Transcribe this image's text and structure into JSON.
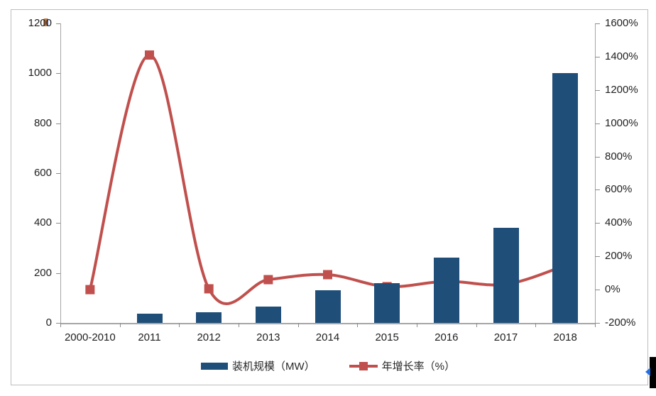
{
  "chart_data": {
    "type": "bar",
    "subtype": "combo-bar-line",
    "title": "",
    "categories": [
      "2000-2010",
      "2011",
      "2012",
      "2013",
      "2014",
      "2015",
      "2016",
      "2017",
      "2018"
    ],
    "series": [
      {
        "name": "装机规模（MW）",
        "type": "bar",
        "axis": "left",
        "color": "#1F4E79",
        "values": [
          0,
          38,
          43,
          66,
          130,
          158,
          262,
          382,
          1000
        ]
      },
      {
        "name": "年增长率（%）",
        "type": "line",
        "axis": "right",
        "color": "#C0504D",
        "values": [
          0,
          1410,
          5,
          60,
          90,
          18,
          50,
          32,
          145
        ]
      }
    ],
    "left_axis": {
      "min": 0,
      "max": 1200,
      "step": 200,
      "ticks": [
        "0",
        "200",
        "400",
        "600",
        "800",
        "1000",
        "1200"
      ]
    },
    "right_axis": {
      "min": -200,
      "max": 1600,
      "step": 200,
      "ticks": [
        "-200%",
        "0%",
        "200%",
        "400%",
        "600%",
        "800%",
        "1000%",
        "1200%",
        "1400%",
        "1600%"
      ]
    },
    "grid": false,
    "legend_position": "bottom",
    "xlabel": "",
    "ylabel_left": "",
    "ylabel_right": ""
  },
  "legend": {
    "bar_label": "装机规模（MW）",
    "line_label": "年增长率（%）"
  },
  "colors": {
    "bar": "#1F4E79",
    "line": "#C0504D",
    "axis": "#A6A6A6",
    "text": "#1F1F1F",
    "frame_border": "#BDBDBD"
  }
}
